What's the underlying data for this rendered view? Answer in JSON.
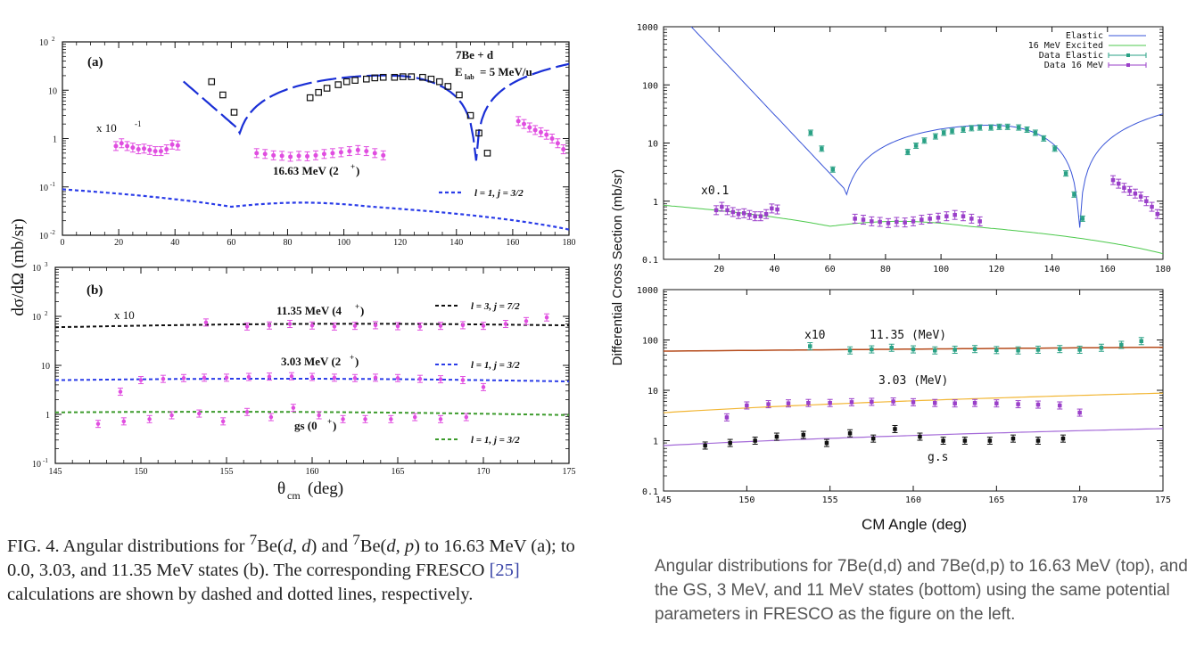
{
  "left_figure": {
    "ylabel": "dσ/dΩ (mb/sr)",
    "xlabel": "θ",
    "xlabel_sub": "cm",
    "xlabel_unit": "(deg)",
    "panel_a": {
      "label": "(a)",
      "reaction": "7Be + d",
      "energy_label": "E",
      "energy_sub": "lab",
      "energy_value": "= 5 MeV/u",
      "scale_note": "x 10",
      "scale_exp": "-1",
      "state_label": "16.63 MeV (2",
      "state_sup": "+",
      "legend": "l = 1, j = 3/2",
      "xticks": [
        "0",
        "20",
        "40",
        "60",
        "80",
        "100",
        "120",
        "140",
        "160",
        "180"
      ],
      "yticks": [
        "10^-2",
        "10^-1",
        "1",
        "10",
        "10^2"
      ],
      "elastic_data": [
        [
          53,
          15
        ],
        [
          57,
          8
        ],
        [
          61,
          3.5
        ],
        [
          88,
          7
        ],
        [
          91,
          9
        ],
        [
          94,
          11
        ],
        [
          98,
          13
        ],
        [
          101,
          15
        ],
        [
          104,
          16
        ],
        [
          108,
          17
        ],
        [
          111,
          18
        ],
        [
          114,
          18.5
        ],
        [
          118,
          18.5
        ],
        [
          121,
          19
        ],
        [
          124,
          19
        ],
        [
          128,
          18.5
        ],
        [
          131,
          17
        ],
        [
          134,
          15
        ],
        [
          137,
          12
        ],
        [
          141,
          8
        ],
        [
          145,
          3
        ],
        [
          148,
          1.3
        ],
        [
          151,
          0.5
        ]
      ],
      "excited_data": [
        [
          19,
          0.7
        ],
        [
          21,
          0.8
        ],
        [
          23,
          0.7
        ],
        [
          25,
          0.65
        ],
        [
          27,
          0.6
        ],
        [
          29,
          0.62
        ],
        [
          31,
          0.58
        ],
        [
          33,
          0.55
        ],
        [
          35,
          0.55
        ],
        [
          37,
          0.6
        ],
        [
          39,
          0.75
        ],
        [
          41,
          0.72
        ],
        [
          69,
          0.5
        ],
        [
          72,
          0.48
        ],
        [
          75,
          0.45
        ],
        [
          78,
          0.44
        ],
        [
          81,
          0.42
        ],
        [
          84,
          0.44
        ],
        [
          87,
          0.43
        ],
        [
          90,
          0.45
        ],
        [
          93,
          0.48
        ],
        [
          96,
          0.5
        ],
        [
          99,
          0.52
        ],
        [
          102,
          0.55
        ],
        [
          105,
          0.58
        ],
        [
          108,
          0.55
        ],
        [
          111,
          0.5
        ],
        [
          114,
          0.45
        ],
        [
          162,
          2.3
        ],
        [
          164,
          2
        ],
        [
          166,
          1.7
        ],
        [
          168,
          1.5
        ],
        [
          170,
          1.35
        ],
        [
          172,
          1.2
        ],
        [
          174,
          1.0
        ],
        [
          176,
          0.8
        ],
        [
          178,
          0.6
        ]
      ]
    },
    "panel_b": {
      "label": "(b)",
      "scale_note": "x 10",
      "state1_label": "11.35 MeV (4",
      "state1_sup": "+",
      "state2_label": "3.03 MeV (2",
      "state2_sup": "+",
      "state3_label": "gs (0",
      "state3_sup": "+",
      "legend1": "l = 3, j = 7/2",
      "legend2": "l = 1, j = 3/2",
      "legend3": "l = 1, j = 3/2",
      "xticks": [
        "145",
        "150",
        "155",
        "160",
        "165",
        "170",
        "175"
      ],
      "yticks": [
        "10^-1",
        "1",
        "10",
        "10^2",
        "10^3"
      ]
    }
  },
  "right_figure": {
    "ylabel": "Differential Cross Section (mb/sr)",
    "xlabel": "CM Angle (deg)",
    "top": {
      "legend": [
        "Elastic",
        "16 MeV Excited",
        "Data Elastic",
        "Data 16 MeV"
      ],
      "scale_note": "x0.1",
      "xticks": [
        "20",
        "40",
        "60",
        "80",
        "100",
        "120",
        "140",
        "160",
        "180"
      ],
      "yticks": [
        "0.1",
        "1",
        "10",
        "100",
        "1000"
      ]
    },
    "bottom": {
      "note_x10": "x10",
      "label_11": "11.35 (MeV)",
      "label_3": "3.03 (MeV)",
      "label_gs": "g.s",
      "xticks": [
        "145",
        "150",
        "155",
        "160",
        "165",
        "170",
        "175"
      ],
      "yticks": [
        "0.1",
        "1",
        "10",
        "100",
        "1000"
      ]
    }
  },
  "chart_data": [
    {
      "type": "scatter",
      "title": "",
      "xlabel": "θcm (deg)",
      "ylabel": "dσ/dΩ (mb/sr)",
      "yscale": "log",
      "xlim": [
        0,
        180
      ],
      "ylim": [
        0.01,
        100
      ],
      "series": [
        {
          "name": "l = 1, j = 3/2",
          "kind": "line"
        }
      ]
    },
    {
      "type": "scatter",
      "title": "",
      "xlabel": "θcm (deg)",
      "ylabel": "dσ/dΩ (mb/sr)",
      "yscale": "log",
      "xlim": [
        145,
        175
      ],
      "ylim": [
        0.1,
        1000
      ],
      "series": [
        {
          "name": "l = 3, j = 7/2",
          "kind": "line",
          "values_note": "11.35 MeV x10",
          "level": 60
        },
        {
          "name": "l = 1, j = 3/2",
          "kind": "line",
          "values_note": "3.03 MeV",
          "level": 5
        },
        {
          "name": "l = 1, j = 3/2",
          "kind": "line",
          "values_note": "gs",
          "level": 1.1
        }
      ],
      "points_11": [
        [
          153.8,
          75
        ],
        [
          156.2,
          62
        ],
        [
          157.5,
          65
        ],
        [
          158.7,
          70
        ],
        [
          160,
          65
        ],
        [
          161.3,
          62
        ],
        [
          162.5,
          64
        ],
        [
          163.7,
          66
        ],
        [
          165,
          63
        ],
        [
          166.3,
          62
        ],
        [
          167.5,
          64
        ],
        [
          168.8,
          66
        ],
        [
          170,
          64
        ],
        [
          171.3,
          70
        ],
        [
          172.5,
          80
        ],
        [
          173.7,
          95
        ]
      ],
      "points_3": [
        [
          148.8,
          2.9
        ],
        [
          150,
          5
        ],
        [
          151.3,
          5.3
        ],
        [
          152.5,
          5.5
        ],
        [
          153.7,
          5.6
        ],
        [
          155,
          5.6
        ],
        [
          156.3,
          5.8
        ],
        [
          157.5,
          5.9
        ],
        [
          158.8,
          6
        ],
        [
          160,
          5.8
        ],
        [
          161.3,
          5.6
        ],
        [
          162.5,
          5.5
        ],
        [
          163.7,
          5.6
        ],
        [
          165,
          5.5
        ],
        [
          166.3,
          5.3
        ],
        [
          167.5,
          5.2
        ],
        [
          168.8,
          5
        ],
        [
          170,
          3.6
        ]
      ],
      "points_gs": [
        [
          147.5,
          0.8
        ],
        [
          149,
          0.9
        ],
        [
          150.5,
          1.0
        ],
        [
          151.8,
          1.2
        ],
        [
          153.4,
          1.3
        ],
        [
          154.8,
          0.9
        ],
        [
          156.2,
          1.4
        ],
        [
          157.6,
          1.1
        ],
        [
          158.9,
          1.7
        ],
        [
          160.4,
          1.2
        ],
        [
          161.8,
          1.0
        ],
        [
          163.1,
          1.0
        ],
        [
          164.6,
          1.0
        ],
        [
          166,
          1.1
        ],
        [
          167.5,
          1.0
        ],
        [
          169,
          1.1
        ]
      ]
    },
    {
      "type": "line",
      "title": "",
      "xlabel": "CM Angle (deg)",
      "ylabel": "Differential Cross Section (mb/sr)",
      "yscale": "log",
      "xlim": [
        0,
        180
      ],
      "ylim": [
        0.1,
        1000
      ],
      "series": [
        {
          "name": "Elastic",
          "color": "#3a55d8"
        },
        {
          "name": "16 MeV Excited",
          "color": "#4cc94c"
        },
        {
          "name": "Data Elastic",
          "color": "#2aa185"
        },
        {
          "name": "Data 16 MeV",
          "color": "#9a3fc9"
        }
      ]
    },
    {
      "type": "line",
      "title": "",
      "xlabel": "CM Angle (deg)",
      "yscale": "log",
      "xlim": [
        145,
        175
      ],
      "ylim": [
        0.1,
        1000
      ],
      "series": [
        {
          "name": "11.35 (MeV)",
          "color": "#b54a1a"
        },
        {
          "name": "3.03 (MeV)",
          "color": "#f2b634"
        },
        {
          "name": "g.s",
          "color": "#a46ad8"
        }
      ]
    }
  ],
  "captions": {
    "left_1": "FIG. 4.   Angular distributions for ",
    "left_sup1": "7",
    "left_2": "Be(",
    "left_3": "d, d",
    "left_4": ") and ",
    "left_sup2": "7",
    "left_5": "Be(",
    "left_6": "d, p",
    "left_7": ") to 16.63 MeV (a); to 0.0, 3.03, and 11.35 MeV states (b). The corresponding ",
    "left_8": "FRESCO",
    "left_9": " [25]",
    "left_10": " calculations are shown by dashed and dotted lines, respectively.",
    "right": "Angular distributions for 7Be(d,d) and 7Be(d,p) to 16.63 MeV (top), and the GS, 3 MeV, and 11 MeV states (bottom) using the same potential parameters in FRESCO as the figure on the left."
  },
  "colors": {
    "magenta_points": "#e04ee0",
    "dark_blue_dash": "#1a2fd6",
    "blue_dot": "#2a3ce8",
    "green_dash": "#3c9b2c",
    "black_dash": "#111111",
    "caption_link": "#3b46a8"
  }
}
